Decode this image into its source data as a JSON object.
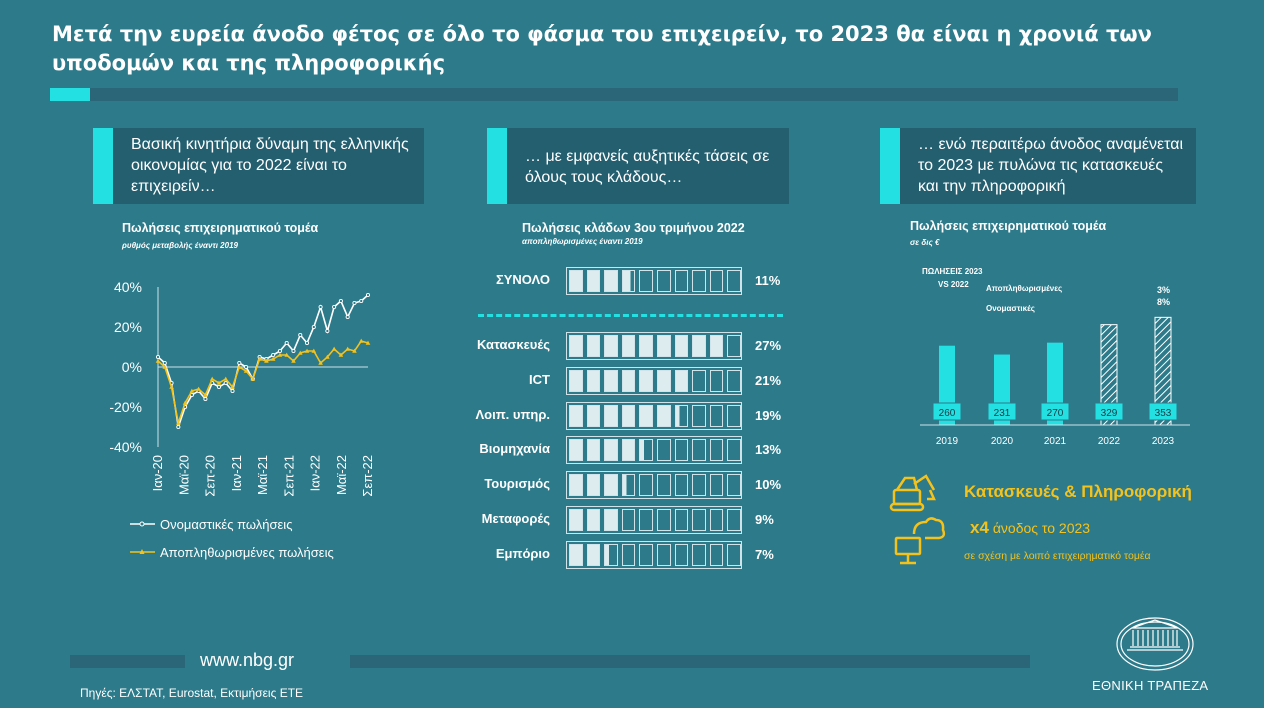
{
  "title": "Μετά την ευρεία άνοδο φέτος σε όλο το φάσμα του επιχειρείν, το 2023 θα είναι η χρονιά των υποδομών και της πληροφορικής",
  "panels": [
    {
      "header": "Βασική κινητήρια δύναμη της ελληνικής οικονομίας για το 2022 είναι το επιχειρείν…"
    },
    {
      "header": "… με εμφανείς αυξητικές τάσεις σε όλους τους κλάδους…"
    },
    {
      "header": "… ενώ περαιτέρω άνοδος αναμένεται το 2023 με πυλώνα τις κατασκευές και την πληροφορική"
    }
  ],
  "colors": {
    "background": "#2d7a8a",
    "accent": "#23e0e3",
    "yellow": "#f5c21b",
    "dark_box": "#245f70"
  },
  "chart_data": [
    {
      "type": "line",
      "title": "Πωλήσεις επιχειρηματικού τομέα",
      "subtitle": "ρυθμός μεταβολής έναντι 2019",
      "x_tick_labels": [
        "Ιαν-20",
        "Μαϊ-20",
        "Σεπ-20",
        "Ιαν-21",
        "Μαϊ-21",
        "Σεπ-21",
        "Ιαν-22",
        "Μαϊ-22",
        "Σεπ-22"
      ],
      "y_tick_labels": [
        "40%",
        "20%",
        "0%",
        "-20%",
        "-40%"
      ],
      "ylim": [
        -40,
        40
      ],
      "series": [
        {
          "name": "Ονομαστικές πωλήσεις",
          "color": "#ffffff",
          "values": [
            5,
            2,
            -8,
            -30,
            -20,
            -14,
            -12,
            -16,
            -8,
            -10,
            -8,
            -12,
            2,
            0,
            -6,
            5,
            4,
            6,
            8,
            12,
            8,
            16,
            12,
            20,
            30,
            18,
            30,
            33,
            25,
            32,
            33,
            36
          ]
        },
        {
          "name": "Αποπληθωρισμένες πωλήσεις",
          "color": "#f5c21b",
          "values": [
            3,
            0,
            -10,
            -28,
            -18,
            -12,
            -11,
            -14,
            -6,
            -8,
            -6,
            -10,
            0,
            -2,
            -6,
            4,
            3,
            4,
            6,
            6,
            3,
            7,
            8,
            8,
            2,
            5,
            9,
            6,
            9,
            8,
            13,
            12
          ]
        }
      ]
    },
    {
      "type": "bar",
      "title": "Πωλήσεις κλάδων 3ου τριμήνου 2022",
      "subtitle": "αποπληθωρισμένες έναντι 2019",
      "total": {
        "label": "ΣΥΝΟΛΟ",
        "value": 11,
        "value_label": "11%"
      },
      "categories": [
        "Κατασκευές",
        "ICT",
        "Λοιπ. υπηρ.",
        "Βιομηχανία",
        "Τουρισμός",
        "Μεταφορές",
        "Εμπόριο"
      ],
      "values": [
        27,
        21,
        19,
        13,
        10,
        9,
        7
      ],
      "value_labels": [
        "27%",
        "21%",
        "19%",
        "13%",
        "10%",
        "9%",
        "7%"
      ]
    },
    {
      "type": "bar",
      "title": "Πωλήσεις επιχειρηματικού τομέα",
      "subtitle": "σε δις €",
      "categories": [
        "2019",
        "2020",
        "2021",
        "2022",
        "2023"
      ],
      "values": [
        260,
        231,
        270,
        329,
        353
      ],
      "hatched": [
        false,
        false,
        false,
        true,
        true
      ],
      "annotation_title": [
        "ΠΩΛΗΣΕΙΣ 2023",
        "VS 2022"
      ],
      "annotation_labels": [
        "Αποπληθωρισμένες",
        "Ονομαστικές"
      ],
      "annotation_values": [
        "3%",
        "8%"
      ]
    }
  ],
  "highlight": {
    "title": "Κατασκευές & Πληροφορική",
    "multiplier": "x4",
    "multiplier_text": "άνοδος το 2023",
    "note": "σε σχέση με λοιπό επιχειρηματικό τομέα",
    "icons": [
      "excavator-icon",
      "cloud-computer-icon"
    ]
  },
  "footer": {
    "website": "www.nbg.gr",
    "sources": "Πηγές: ΕΛΣΤΑΤ, Eurostat, Εκτιμήσεις ΕΤΕ",
    "bank_name": "ΕΘΝΙΚΗ ΤΡΑΠΕΖΑ"
  }
}
